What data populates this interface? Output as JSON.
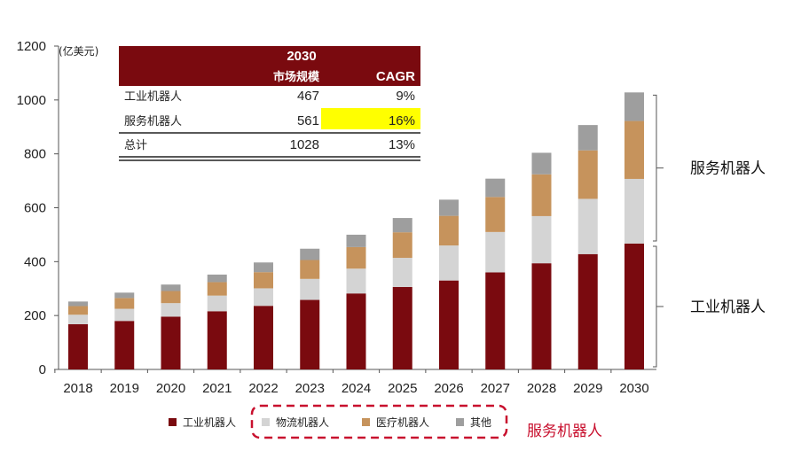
{
  "chart_data": {
    "type": "bar",
    "stacked": true,
    "unit": "(亿美元)",
    "categories": [
      "2018",
      "2019",
      "2020",
      "2021",
      "2022",
      "2023",
      "2024",
      "2025",
      "2026",
      "2027",
      "2028",
      "2029",
      "2030"
    ],
    "ylim": [
      0,
      1200
    ],
    "yticks": [
      0,
      200,
      400,
      600,
      800,
      1000,
      1200
    ],
    "series": [
      {
        "name": "工业机器人",
        "color": "#7a0a0f",
        "values": [
          168,
          180,
          196,
          216,
          236,
          258,
          282,
          306,
          330,
          360,
          394,
          428,
          467
        ]
      },
      {
        "name": "物流机器人",
        "color": "#d4d4d4",
        "values": [
          35,
          45,
          50,
          58,
          65,
          78,
          92,
          108,
          130,
          150,
          175,
          205,
          240
        ]
      },
      {
        "name": "医疗机器人",
        "color": "#c6935c",
        "values": [
          32,
          40,
          45,
          50,
          60,
          70,
          80,
          95,
          110,
          130,
          155,
          180,
          215
        ]
      },
      {
        "name": "其他",
        "color": "#9e9e9e",
        "values": [
          17,
          20,
          24,
          28,
          36,
          42,
          46,
          53,
          60,
          68,
          80,
          94,
          106
        ]
      }
    ],
    "legend_group_label": "服务机器人",
    "brackets": [
      {
        "label": "服务机器人",
        "from": 467,
        "to": 1028
      },
      {
        "label": "工业机器人",
        "from": 0,
        "to": 467
      }
    ],
    "inset_table": {
      "year": "2030",
      "col_headers": [
        "市场规模",
        "CAGR"
      ],
      "rows": [
        {
          "name": "工业机器人",
          "size": "467",
          "cagr": "9%",
          "highlight": false
        },
        {
          "name": "服务机器人",
          "size": "561",
          "cagr": "16%",
          "highlight": true
        },
        {
          "name": "总计",
          "size": "1028",
          "cagr": "13%",
          "highlight": false
        }
      ]
    }
  }
}
